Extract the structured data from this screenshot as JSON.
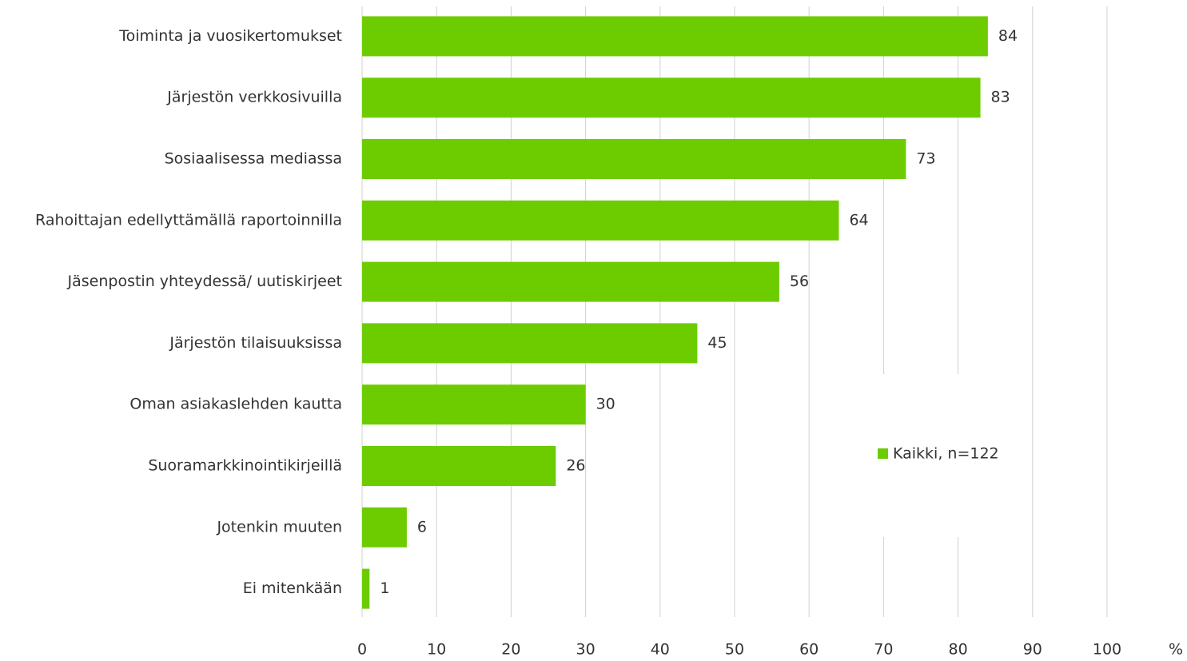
{
  "chart_data": {
    "type": "bar",
    "orientation": "horizontal",
    "categories": [
      "Toiminta ja vuosikertomukset",
      "Järjestön verkkosivuilla",
      "Sosiaalisessa mediassa",
      "Rahoittajan edellyttämällä raportoinnilla",
      "Jäsenpostin yhteydessä/ uutiskirjeet",
      "Järjestön tilaisuuksissa",
      "Oman asiakaslehden kautta",
      "Suoramarkkinointikirjeillä",
      "Jotenkin muuten",
      "Ei mitenkään"
    ],
    "series": [
      {
        "name": "Kaikki, n=122",
        "color": "#6ccc00",
        "values": [
          84,
          83,
          73,
          64,
          56,
          45,
          30,
          26,
          6,
          1
        ]
      }
    ],
    "xlim": [
      0,
      100
    ],
    "xticks": [
      0,
      10,
      20,
      30,
      40,
      50,
      60,
      70,
      80,
      90,
      100
    ],
    "x_label": "%",
    "grid": true,
    "legend": "right"
  }
}
